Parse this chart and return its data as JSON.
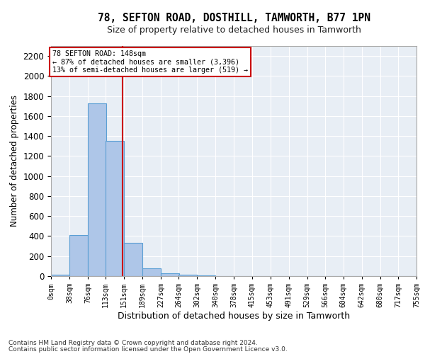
{
  "title1": "78, SEFTON ROAD, DOSTHILL, TAMWORTH, B77 1PN",
  "title2": "Size of property relative to detached houses in Tamworth",
  "xlabel": "Distribution of detached houses by size in Tamworth",
  "ylabel": "Number of detached properties",
  "footnote1": "Contains HM Land Registry data © Crown copyright and database right 2024.",
  "footnote2": "Contains public sector information licensed under the Open Government Licence v3.0.",
  "annotation_title": "78 SEFTON ROAD: 148sqm",
  "annotation_line1": "← 87% of detached houses are smaller (3,396)",
  "annotation_line2": "13% of semi-detached houses are larger (519) →",
  "property_size": 148,
  "bin_width": 38,
  "bin_starts": [
    0,
    38,
    76,
    113,
    151,
    189,
    227,
    264,
    302,
    340,
    378,
    415,
    453,
    491,
    529,
    566,
    604,
    642,
    680,
    717
  ],
  "bin_labels": [
    "0sqm",
    "38sqm",
    "76sqm",
    "113sqm",
    "151sqm",
    "189sqm",
    "227sqm",
    "264sqm",
    "302sqm",
    "340sqm",
    "378sqm",
    "415sqm",
    "453sqm",
    "491sqm",
    "529sqm",
    "566sqm",
    "604sqm",
    "642sqm",
    "680sqm",
    "717sqm",
    "755sqm"
  ],
  "bar_heights": [
    15,
    410,
    1730,
    1350,
    335,
    75,
    30,
    15,
    5,
    0,
    0,
    0,
    0,
    0,
    0,
    0,
    0,
    0,
    0,
    0
  ],
  "bar_color": "#aec6e8",
  "bar_edge_color": "#5a9fd4",
  "vline_color": "#cc0000",
  "vline_x": 148,
  "annotation_box_color": "#cc0000",
  "background_color": "#e8eef5",
  "ylim": [
    0,
    2300
  ],
  "yticks": [
    0,
    200,
    400,
    600,
    800,
    1000,
    1200,
    1400,
    1600,
    1800,
    2000,
    2200
  ]
}
